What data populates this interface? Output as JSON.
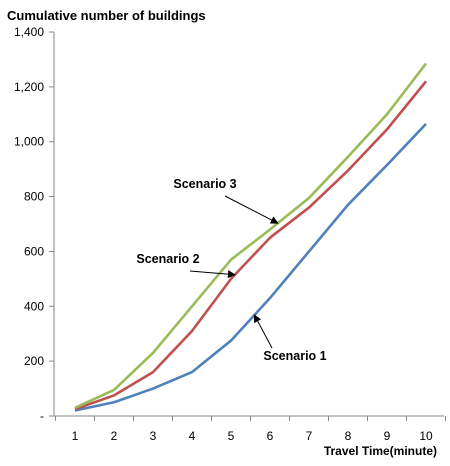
{
  "chart_data": {
    "type": "line",
    "title": "Cumulative number of buildings",
    "xlabel": "Travel Time(minute)",
    "ylabel": "",
    "x": [
      1,
      2,
      3,
      4,
      5,
      6,
      7,
      8,
      9,
      10
    ],
    "ylim": [
      0,
      1400
    ],
    "yticks": [
      0,
      200,
      400,
      600,
      800,
      1000,
      1200,
      1400
    ],
    "ytick_labels": [
      "-",
      "200",
      "400",
      "600",
      "800",
      "1,000",
      "1,200",
      "1,400"
    ],
    "grid": false,
    "legend": "none",
    "series": [
      {
        "name": "Scenario 1",
        "color": "#4F81BD",
        "values": [
          20,
          50,
          100,
          160,
          275,
          430,
          600,
          770,
          915,
          1065
        ]
      },
      {
        "name": "Scenario 2",
        "color": "#C0504D",
        "values": [
          25,
          75,
          160,
          310,
          500,
          650,
          760,
          895,
          1045,
          1220
        ]
      },
      {
        "name": "Scenario 3",
        "color": "#9BBB59",
        "values": [
          30,
          95,
          230,
          400,
          570,
          680,
          795,
          945,
          1100,
          1285
        ]
      }
    ],
    "annotations": [
      {
        "text": "Scenario 3",
        "series": "Scenario 3",
        "arrow_to_x": 6.2
      },
      {
        "text": "Scenario 2",
        "series": "Scenario 2",
        "arrow_to_x": 5.1
      },
      {
        "text": "Scenario 1",
        "series": "Scenario 1",
        "arrow_to_x": 5.6
      }
    ]
  }
}
